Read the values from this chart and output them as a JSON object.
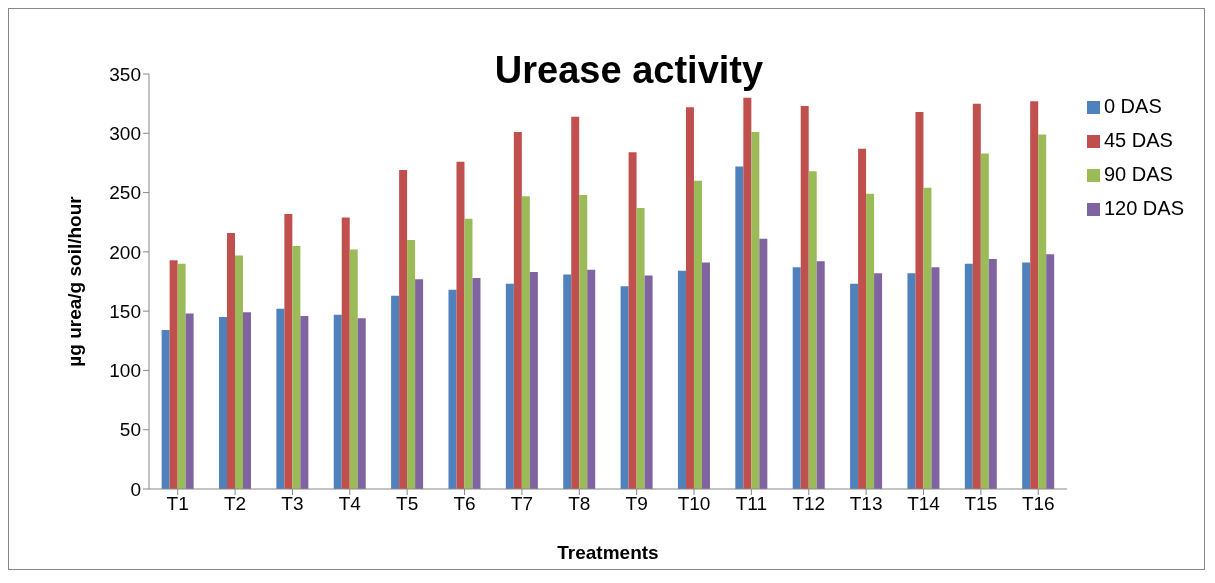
{
  "chart_data": {
    "type": "bar",
    "title": "Urease activity",
    "xlabel": "Treatments",
    "ylabel": "µg urea/g soil/hour",
    "categories": [
      "T1",
      "T2",
      "T3",
      "T4",
      "T5",
      "T6",
      "T7",
      "T8",
      "T9",
      "T10",
      "T11",
      "T12",
      "T13",
      "T14",
      "T15",
      "T16"
    ],
    "series": [
      {
        "name": "0 DAS",
        "color": "#4f81bd",
        "values": [
          134,
          145,
          152,
          147,
          163,
          168,
          173,
          181,
          171,
          184,
          272,
          187,
          173,
          182,
          190,
          191
        ]
      },
      {
        "name": "45 DAS",
        "color": "#c0504d",
        "values": [
          193,
          216,
          232,
          229,
          269,
          276,
          301,
          314,
          284,
          322,
          330,
          323,
          287,
          318,
          325,
          327
        ]
      },
      {
        "name": "90 DAS",
        "color": "#9bbb59",
        "values": [
          190,
          197,
          205,
          202,
          210,
          228,
          247,
          248,
          237,
          260,
          301,
          268,
          249,
          254,
          283,
          299
        ]
      },
      {
        "name": "120 DAS",
        "color": "#8064a2",
        "values": [
          148,
          149,
          146,
          144,
          177,
          178,
          183,
          185,
          180,
          191,
          211,
          192,
          182,
          187,
          194,
          198
        ]
      }
    ],
    "ylim": [
      0,
      350
    ],
    "yticks": [
      0,
      50,
      100,
      150,
      200,
      250,
      300,
      350
    ],
    "grid": false,
    "legend": "top right"
  }
}
